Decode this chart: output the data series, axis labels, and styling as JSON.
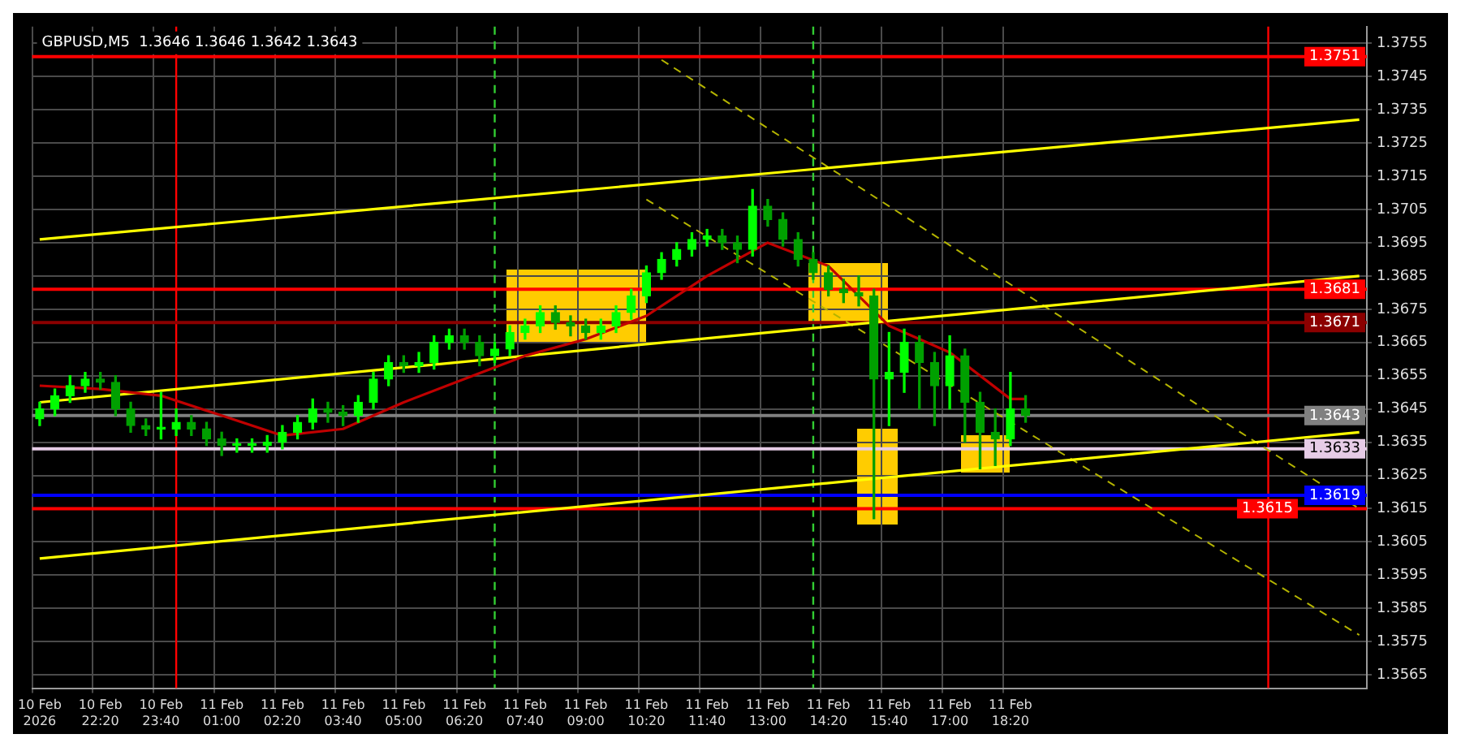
{
  "chart_data": {
    "type": "candlestick",
    "title": "GBPUSD,M5  1.3646 1.3646 1.3642 1.3643",
    "colors": [
      "#00ff00",
      "#00ff00",
      "#00ff00",
      "#00ff00",
      "#00a000",
      "#00a000",
      "#00a000",
      "#00a000",
      "#00ff00",
      "#00ff00",
      "#00a000",
      "#00a000",
      "#00a000",
      "#00ff00",
      "#00ff00",
      "#00ff00",
      "#00ff00",
      "#00ff00",
      "#00ff00",
      "#00a000",
      "#00a000",
      "#00ff00",
      "#00ff00",
      "#00ff00",
      "#00a000",
      "#00ff00",
      "#00ff00",
      "#00ff00",
      "#00a000",
      "#00a000",
      "#00ff00",
      "#00ff00",
      "#00ff00",
      "#00ff00",
      "#00a000",
      "#00a000",
      "#00a000",
      "#00ff00",
      "#00ff00",
      "#00ff00",
      "#00ff00",
      "#00ff00",
      "#00ff00",
      "#00ff00",
      "#00ff00",
      "#00a000",
      "#00a000",
      "#00ff00",
      "#00a000",
      "#00a000",
      "#00a000",
      "#00a000",
      "#00a000",
      "#00a000",
      "#00a000",
      "#00a000",
      "#00ff00",
      "#00ff00",
      "#00a000",
      "#00a000",
      "#00ff00",
      "#00a000",
      "#00a000",
      "#00a000",
      "#00ff00",
      "#00a000",
      null,
      null,
      null,
      null,
      null,
      null,
      null,
      null,
      null,
      null,
      null,
      null,
      null,
      null,
      null,
      null,
      null,
      null,
      null,
      null,
      null,
      null
    ],
    "categories": [
      "10 Feb 2026",
      null,
      null,
      null,
      "10 Feb 22:20",
      null,
      null,
      null,
      "10 Feb 23:40",
      null,
      null,
      null,
      "11 Feb 01:00",
      null,
      null,
      null,
      "11 Feb 02:20",
      null,
      null,
      null,
      "11 Feb 03:40",
      null,
      null,
      null,
      "11 Feb 05:00",
      null,
      null,
      null,
      "11 Feb 06:20",
      null,
      null,
      null,
      "11 Feb 07:40",
      null,
      null,
      null,
      "11 Feb 09:00",
      null,
      null,
      null,
      "11 Feb 10:20",
      null,
      null,
      null,
      "11 Feb 11:40",
      null,
      null,
      null,
      "11 Feb 13:00",
      null,
      null,
      null,
      "11 Feb 14:20",
      null,
      null,
      null,
      "11 Feb 15:40",
      null,
      null,
      null,
      "11 Feb 17:00",
      null,
      null,
      null,
      "11 Feb 18:20",
      null,
      null,
      null,
      null,
      null,
      null,
      null,
      null,
      null,
      null,
      null,
      null,
      null,
      null,
      null,
      null,
      null,
      null,
      null,
      null,
      null,
      null,
      null
    ],
    "ohlc": [
      [
        1.3642,
        1.3647,
        1.364,
        1.3645
      ],
      [
        1.3645,
        1.3651,
        1.3643,
        1.3649
      ],
      [
        1.3649,
        1.3655,
        1.3647,
        1.3652
      ],
      [
        1.3652,
        1.3656,
        1.365,
        1.3654
      ],
      [
        1.3654,
        1.3656,
        1.3651,
        1.3653
      ],
      [
        1.3653,
        1.3655,
        1.3643,
        1.3645
      ],
      [
        1.3645,
        1.3647,
        1.3638,
        1.364
      ],
      [
        1.364,
        1.3642,
        1.3637,
        1.3639
      ],
      [
        1.3639,
        1.365,
        1.3636,
        1.3639
      ],
      [
        1.3639,
        1.3645,
        1.3637,
        1.3641
      ],
      [
        1.3641,
        1.3643,
        1.3637,
        1.3639
      ],
      [
        1.3639,
        1.3641,
        1.3634,
        1.3636
      ],
      [
        1.3636,
        1.3638,
        1.3631,
        1.3634
      ],
      [
        1.3634,
        1.3636,
        1.3632,
        1.3634
      ],
      [
        1.3634,
        1.3636,
        1.3632,
        1.3634
      ],
      [
        1.3634,
        1.3637,
        1.3632,
        1.3635
      ],
      [
        1.3635,
        1.364,
        1.3633,
        1.3638
      ],
      [
        1.3638,
        1.3643,
        1.3636,
        1.3641
      ],
      [
        1.3641,
        1.3648,
        1.3639,
        1.3645
      ],
      [
        1.3645,
        1.3647,
        1.3641,
        1.3644
      ],
      [
        1.3644,
        1.3646,
        1.364,
        1.3643
      ],
      [
        1.3643,
        1.3649,
        1.3641,
        1.3647
      ],
      [
        1.3647,
        1.3656,
        1.3645,
        1.3654
      ],
      [
        1.3654,
        1.3661,
        1.3652,
        1.3659
      ],
      [
        1.3659,
        1.3661,
        1.3656,
        1.3658
      ],
      [
        1.3658,
        1.3662,
        1.3656,
        1.3659
      ],
      [
        1.3659,
        1.3667,
        1.3657,
        1.3665
      ],
      [
        1.3665,
        1.3669,
        1.3663,
        1.3667
      ],
      [
        1.3667,
        1.3669,
        1.3663,
        1.3665
      ],
      [
        1.3665,
        1.3667,
        1.3658,
        1.3661
      ],
      [
        1.3661,
        1.3665,
        1.3659,
        1.3663
      ],
      [
        1.3663,
        1.367,
        1.3661,
        1.3668
      ],
      [
        1.3668,
        1.3672,
        1.3666,
        1.367
      ],
      [
        1.367,
        1.3676,
        1.3668,
        1.3674
      ],
      [
        1.3674,
        1.3676,
        1.3669,
        1.3671
      ],
      [
        1.3671,
        1.3673,
        1.3667,
        1.367
      ],
      [
        1.367,
        1.3672,
        1.3666,
        1.3668
      ],
      [
        1.3668,
        1.3672,
        1.3666,
        1.367
      ],
      [
        1.367,
        1.3676,
        1.3668,
        1.3674
      ],
      [
        1.3674,
        1.3681,
        1.3672,
        1.3679
      ],
      [
        1.3679,
        1.3688,
        1.3677,
        1.3686
      ],
      [
        1.3686,
        1.3692,
        1.3684,
        1.369
      ],
      [
        1.369,
        1.3695,
        1.3688,
        1.3693
      ],
      [
        1.3693,
        1.3698,
        1.3691,
        1.3696
      ],
      [
        1.3696,
        1.3699,
        1.3694,
        1.3697
      ],
      [
        1.3697,
        1.3699,
        1.3693,
        1.3695
      ],
      [
        1.3695,
        1.3697,
        1.3689,
        1.3693
      ],
      [
        1.3693,
        1.3711,
        1.3691,
        1.3706
      ],
      [
        1.3706,
        1.3708,
        1.37,
        1.3702
      ],
      [
        1.3702,
        1.3704,
        1.3694,
        1.3696
      ],
      [
        1.3696,
        1.3698,
        1.3688,
        1.369
      ],
      [
        1.369,
        1.3692,
        1.3684,
        1.3686
      ],
      [
        1.3686,
        1.3688,
        1.3679,
        1.3681
      ],
      [
        1.3681,
        1.3684,
        1.3677,
        1.368
      ],
      [
        1.368,
        1.3685,
        1.3676,
        1.3679
      ],
      [
        1.3679,
        1.3681,
        1.3612,
        1.3654
      ],
      [
        1.3654,
        1.3668,
        1.364,
        1.3656
      ],
      [
        1.3656,
        1.3669,
        1.365,
        1.3665
      ],
      [
        1.3665,
        1.3667,
        1.3645,
        1.3659
      ],
      [
        1.3659,
        1.3662,
        1.364,
        1.3652
      ],
      [
        1.3652,
        1.3667,
        1.3645,
        1.3661
      ],
      [
        1.3661,
        1.3663,
        1.3635,
        1.3647
      ],
      [
        1.3647,
        1.365,
        1.3627,
        1.3638
      ],
      [
        1.3638,
        1.3645,
        1.3628,
        1.3636
      ],
      [
        1.3636,
        1.3656,
        1.3634,
        1.3645
      ],
      [
        1.3645,
        1.3649,
        1.3641,
        1.3643
      ],
      null,
      null,
      null,
      null,
      null,
      null,
      null,
      null,
      null,
      null,
      null,
      null,
      null,
      null,
      null,
      null,
      null,
      null,
      null,
      null,
      null,
      null
    ],
    "series": [
      {
        "type": "line",
        "color": "#c00000",
        "line_style": "solid",
        "values": [
          1.3652,
          null,
          null,
          null,
          1.3651,
          null,
          null,
          null,
          1.3649,
          null,
          null,
          null,
          1.3643,
          null,
          null,
          null,
          1.3637,
          null,
          null,
          null,
          1.3639,
          null,
          null,
          null,
          1.3647,
          null,
          null,
          null,
          1.3654,
          null,
          null,
          null,
          1.3661,
          null,
          null,
          null,
          1.3666,
          null,
          null,
          null,
          1.3673,
          null,
          null,
          null,
          1.3685,
          null,
          null,
          null,
          1.3695,
          null,
          null,
          null,
          1.3688,
          null,
          null,
          null,
          1.367,
          null,
          null,
          null,
          1.3662,
          null,
          null,
          null,
          1.3648,
          1.3648,
          null,
          null,
          null,
          null,
          null,
          null,
          null,
          null,
          null,
          null,
          null,
          null,
          null,
          null,
          null,
          null,
          null,
          null,
          null,
          null,
          null,
          null
        ]
      },
      {
        "type": "line",
        "color": "#ffff00",
        "line_style": "solid",
        "values": [
          1.3696,
          null,
          null,
          null,
          null,
          null,
          null,
          null,
          null,
          null,
          null,
          null,
          null,
          null,
          null,
          null,
          null,
          null,
          null,
          null,
          null,
          null,
          null,
          null,
          null,
          null,
          null,
          null,
          null,
          null,
          null,
          null,
          null,
          null,
          null,
          null,
          null,
          null,
          null,
          null,
          null,
          null,
          null,
          null,
          null,
          null,
          null,
          null,
          null,
          null,
          null,
          null,
          null,
          null,
          null,
          null,
          null,
          null,
          null,
          null,
          null,
          null,
          null,
          null,
          null,
          null,
          null,
          null,
          null,
          null,
          null,
          null,
          null,
          null,
          null,
          null,
          null,
          null,
          null,
          null,
          null,
          null,
          null,
          null,
          null,
          null,
          null,
          1.3732
        ]
      },
      {
        "type": "line",
        "color": "#ffff00",
        "line_style": "solid",
        "values": [
          1.3647,
          null,
          null,
          null,
          null,
          null,
          null,
          null,
          null,
          null,
          null,
          null,
          null,
          null,
          null,
          null,
          null,
          null,
          null,
          null,
          null,
          null,
          null,
          null,
          null,
          null,
          null,
          null,
          null,
          null,
          null,
          null,
          null,
          null,
          null,
          null,
          null,
          null,
          null,
          null,
          null,
          null,
          null,
          null,
          null,
          null,
          null,
          null,
          null,
          null,
          null,
          null,
          null,
          null,
          null,
          null,
          null,
          null,
          null,
          null,
          null,
          null,
          null,
          null,
          null,
          null,
          null,
          null,
          null,
          null,
          null,
          null,
          null,
          null,
          null,
          null,
          null,
          null,
          null,
          null,
          null,
          null,
          null,
          null,
          null,
          null,
          null,
          1.3685
        ]
      },
      {
        "type": "line",
        "color": "#ffff00",
        "line_style": "solid",
        "values": [
          1.36,
          null,
          null,
          null,
          null,
          null,
          null,
          null,
          null,
          null,
          null,
          null,
          null,
          null,
          null,
          null,
          null,
          null,
          null,
          null,
          null,
          null,
          null,
          null,
          null,
          null,
          null,
          null,
          null,
          null,
          null,
          null,
          null,
          null,
          null,
          null,
          null,
          null,
          null,
          null,
          null,
          null,
          null,
          null,
          null,
          null,
          null,
          null,
          null,
          null,
          null,
          null,
          null,
          null,
          null,
          null,
          null,
          null,
          null,
          null,
          null,
          null,
          null,
          null,
          null,
          null,
          null,
          null,
          null,
          null,
          null,
          null,
          null,
          null,
          null,
          null,
          null,
          null,
          null,
          null,
          null,
          null,
          null,
          null,
          null,
          null,
          null,
          1.3638
        ]
      },
      {
        "type": "line",
        "color": "#b4b400",
        "line_style": "dashed",
        "values": [
          null,
          null,
          null,
          null,
          null,
          null,
          null,
          null,
          null,
          null,
          null,
          null,
          null,
          null,
          null,
          null,
          null,
          null,
          null,
          null,
          null,
          null,
          null,
          null,
          null,
          null,
          null,
          null,
          null,
          null,
          null,
          null,
          null,
          null,
          null,
          null,
          null,
          null,
          null,
          null,
          null,
          1.375,
          null,
          null,
          null,
          null,
          null,
          null,
          null,
          null,
          null,
          null,
          null,
          null,
          null,
          null,
          null,
          null,
          null,
          null,
          null,
          null,
          null,
          null,
          null,
          null,
          null,
          null,
          null,
          null,
          null,
          null,
          null,
          null,
          null,
          null,
          null,
          null,
          null,
          null,
          null,
          null,
          null,
          null,
          null,
          null,
          null,
          1.3615
        ]
      },
      {
        "type": "line",
        "color": "#b4b400",
        "line_style": "dashed",
        "values": [
          null,
          null,
          null,
          null,
          null,
          null,
          null,
          null,
          null,
          null,
          null,
          null,
          null,
          null,
          null,
          null,
          null,
          null,
          null,
          null,
          null,
          null,
          null,
          null,
          null,
          null,
          null,
          null,
          null,
          null,
          null,
          null,
          null,
          null,
          null,
          null,
          null,
          null,
          null,
          null,
          1.3708,
          null,
          null,
          null,
          null,
          null,
          null,
          null,
          null,
          null,
          null,
          null,
          null,
          null,
          null,
          null,
          null,
          null,
          null,
          null,
          null,
          null,
          null,
          null,
          null,
          null,
          null,
          null,
          null,
          null,
          null,
          null,
          null,
          null,
          null,
          null,
          null,
          null,
          null,
          null,
          null,
          null,
          null,
          null,
          null,
          null,
          null,
          1.3577
        ]
      }
    ],
    "ylim": [
      1.3561,
      1.376
    ],
    "yticks": [
      1.3565,
      1.3575,
      1.3585,
      1.3595,
      1.3605,
      1.3615,
      1.3625,
      1.3635,
      1.3645,
      1.3655,
      1.3665,
      1.3675,
      1.3685,
      1.3695,
      1.3705,
      1.3715,
      1.3725,
      1.3735,
      1.3745,
      1.3755
    ],
    "grid": true,
    "ref_lines": [
      {
        "axis": "y",
        "value": 1.3751,
        "label": "1.3751",
        "color": "#ff0000"
      },
      {
        "axis": "y",
        "value": 1.3681,
        "label": "1.3681",
        "color": "#ff0000"
      },
      {
        "axis": "y",
        "value": 1.3671,
        "label": "1.3671",
        "color": "#8b0000"
      },
      {
        "axis": "y",
        "value": 1.3643,
        "label": "1.3643",
        "color": "#808080"
      },
      {
        "axis": "y",
        "value": 1.3633,
        "label": "1.3633",
        "color": "#e6cce6"
      },
      {
        "axis": "y",
        "value": 1.3619,
        "label": "1.3619",
        "color": "#0000ff"
      },
      {
        "axis": "y",
        "value": 1.3615,
        "label": "1.3615",
        "color": "#ff0000"
      }
    ]
  }
}
